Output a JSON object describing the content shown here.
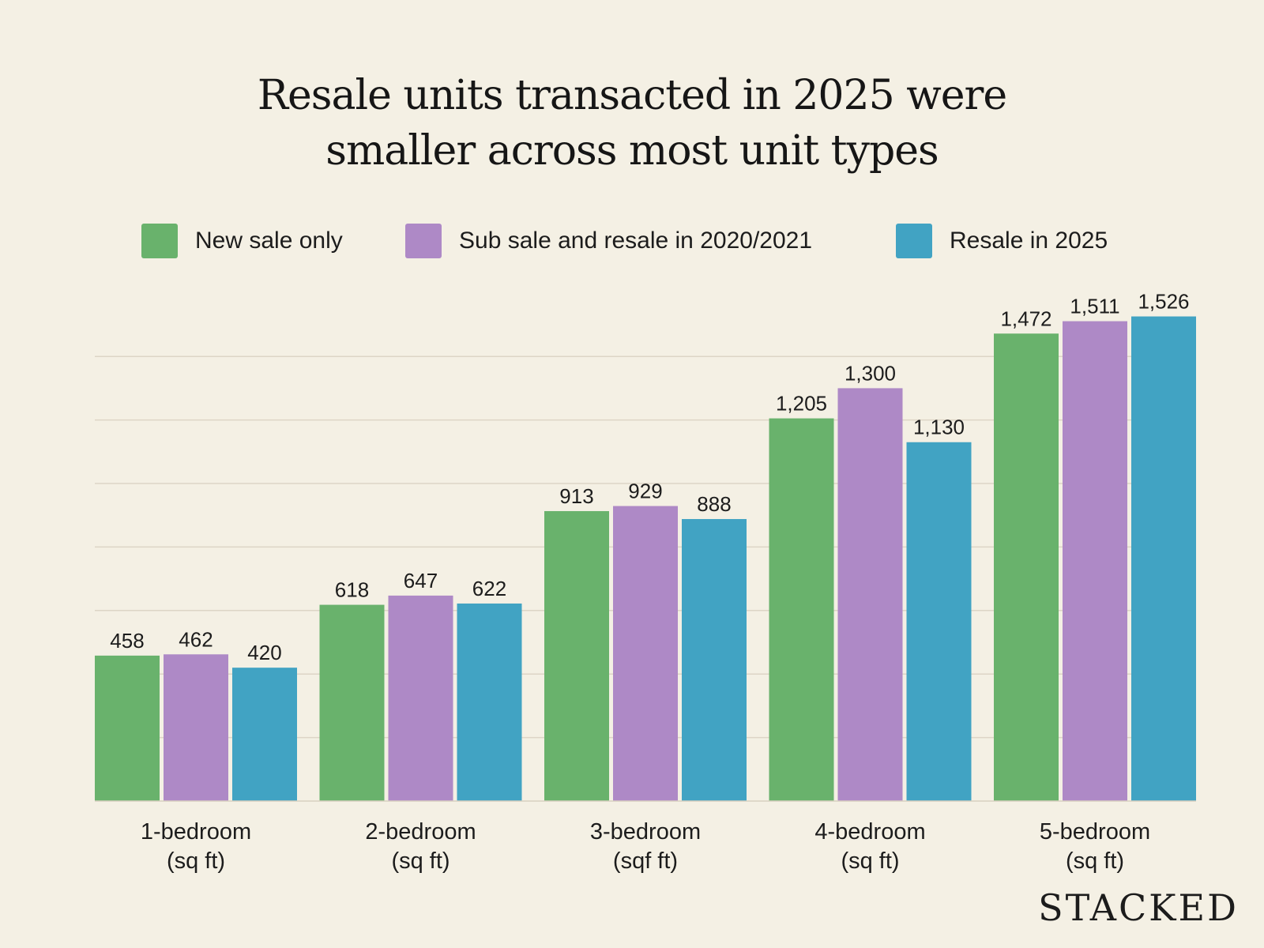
{
  "chart_data": {
    "type": "bar",
    "title_lines": [
      "Resale units transacted in 2025 were",
      "smaller across most unit types"
    ],
    "categories": [
      [
        "1-bedroom",
        "(sq ft)"
      ],
      [
        "2-bedroom",
        "(sq ft)"
      ],
      [
        "3-bedroom",
        "(sqf ft)"
      ],
      [
        "4-bedroom",
        "(sq ft)"
      ],
      [
        "5-bedroom",
        "(sq ft)"
      ]
    ],
    "series": [
      {
        "name": "New sale only",
        "color": "#69b26c",
        "values": [
          458,
          618,
          913,
          1205,
          1472
        ],
        "labels": [
          "458",
          "618",
          "913",
          "1,205",
          "1,472"
        ]
      },
      {
        "name": "Sub sale and resale in 2020/2021",
        "color": "#ae89c6",
        "values": [
          462,
          647,
          929,
          1300,
          1511
        ],
        "labels": [
          "462",
          "647",
          "929",
          "1,300",
          "1,511"
        ]
      },
      {
        "name": "Resale in 2025",
        "color": "#41a3c3",
        "values": [
          420,
          622,
          888,
          1130,
          1526
        ],
        "labels": [
          "420",
          "622",
          "888",
          "1,130",
          "1,526"
        ]
      }
    ],
    "ylim": [
      0,
      1600
    ],
    "grid": true,
    "legend_position": "top"
  },
  "brand": "STACKED"
}
